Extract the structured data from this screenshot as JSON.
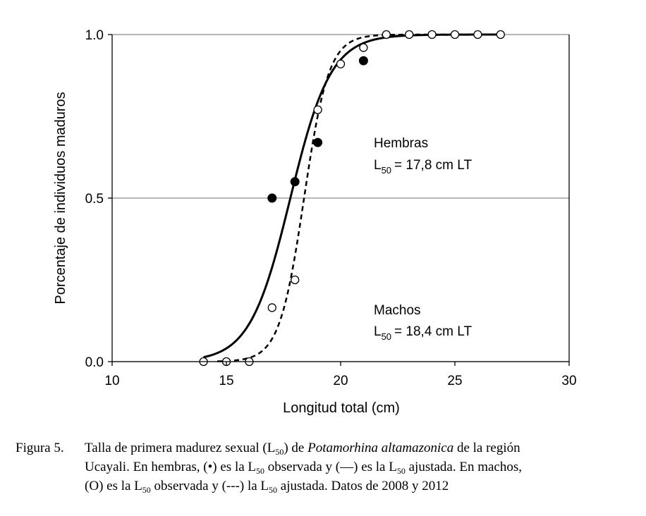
{
  "chart_data": {
    "type": "scatter",
    "ylabel": "Porcentaje de individuos maduros",
    "xlabel": "Longitud total (cm)",
    "xlim": [
      10,
      30
    ],
    "ylim": [
      0.0,
      1.0
    ],
    "x_ticks": [
      "10",
      "15",
      "20",
      "25",
      "30"
    ],
    "y_ticks": [
      "0.0",
      "0.5",
      "1.0"
    ],
    "grid": "horizontal",
    "series": [
      {
        "name": "Hembras",
        "marker": "filled-circle",
        "line_style": "solid",
        "L50": 17.8,
        "points": [
          [
            17,
            0.5
          ],
          [
            18,
            0.55
          ],
          [
            19,
            0.67
          ],
          [
            21,
            0.92
          ]
        ]
      },
      {
        "name": "Machos",
        "marker": "open-circle",
        "line_style": "dashed",
        "L50": 18.4,
        "points": [
          [
            14,
            0.0
          ],
          [
            15,
            0.0
          ],
          [
            16,
            0.0
          ],
          [
            17,
            0.165
          ],
          [
            18,
            0.25
          ],
          [
            19,
            0.77
          ],
          [
            20,
            0.91
          ],
          [
            21,
            0.96
          ],
          [
            22,
            1.0
          ],
          [
            23,
            1.0
          ],
          [
            24,
            1.0
          ],
          [
            25,
            1.0
          ],
          [
            26,
            1.0
          ],
          [
            27,
            1.0
          ]
        ]
      }
    ],
    "annotations": {
      "hembras_title": "Hembras",
      "hembras_l50": "= 17,8 cm LT",
      "machos_title": "Machos",
      "machos_l50": "= 18,4 cm LT",
      "l": "L",
      "sub50": "50"
    }
  },
  "caption": {
    "label": "Figura 5.",
    "l": "L",
    "sub50": "50",
    "t1": "Talla de primera madurez sexual (",
    "t2": ") de ",
    "species": "Potamorhina altamazonica",
    "t3": " de la región",
    "t4": "Ucayali. En hembras, (",
    "t5": ") es la ",
    "t6": " observada y (––) es la ",
    "t7": " ajustada. En machos,",
    "t8": "(",
    "t9": ") es la ",
    "t10": " observada y (---) la ",
    "t11": " ajustada. Datos de 2008 y 2012",
    "filled_dot": "•",
    "open_dot": "O"
  }
}
